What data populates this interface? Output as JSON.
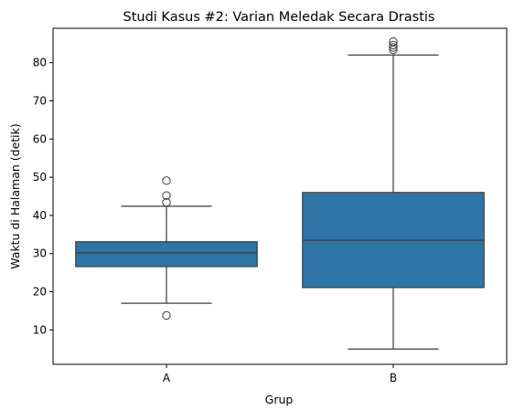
{
  "chart_data": {
    "type": "boxplot",
    "title": "Studi Kasus #2: Varian Meledak Secara Drastis",
    "xlabel": "Grup",
    "ylabel": "Waktu di Halaman (detik)",
    "categories": [
      "A",
      "B"
    ],
    "ylim": [
      1,
      89
    ],
    "yticks": [
      10,
      20,
      30,
      40,
      50,
      60,
      70,
      80
    ],
    "grid": false,
    "legend": "none",
    "box_color": "#2e76a8",
    "line_color": "#3b3b3b",
    "boxes": [
      {
        "category": "A",
        "whisker_low": 17.0,
        "q1": 26.6,
        "median": 30.2,
        "q3": 33.1,
        "whisker_high": 42.4,
        "outliers": [
          13.8,
          43.4,
          45.2,
          49.1
        ]
      },
      {
        "category": "B",
        "whisker_low": 5.0,
        "q1": 21.1,
        "median": 33.5,
        "q3": 46.0,
        "whisker_high": 82.0,
        "outliers": [
          83.4,
          84.0,
          84.6,
          85.5
        ]
      }
    ]
  }
}
